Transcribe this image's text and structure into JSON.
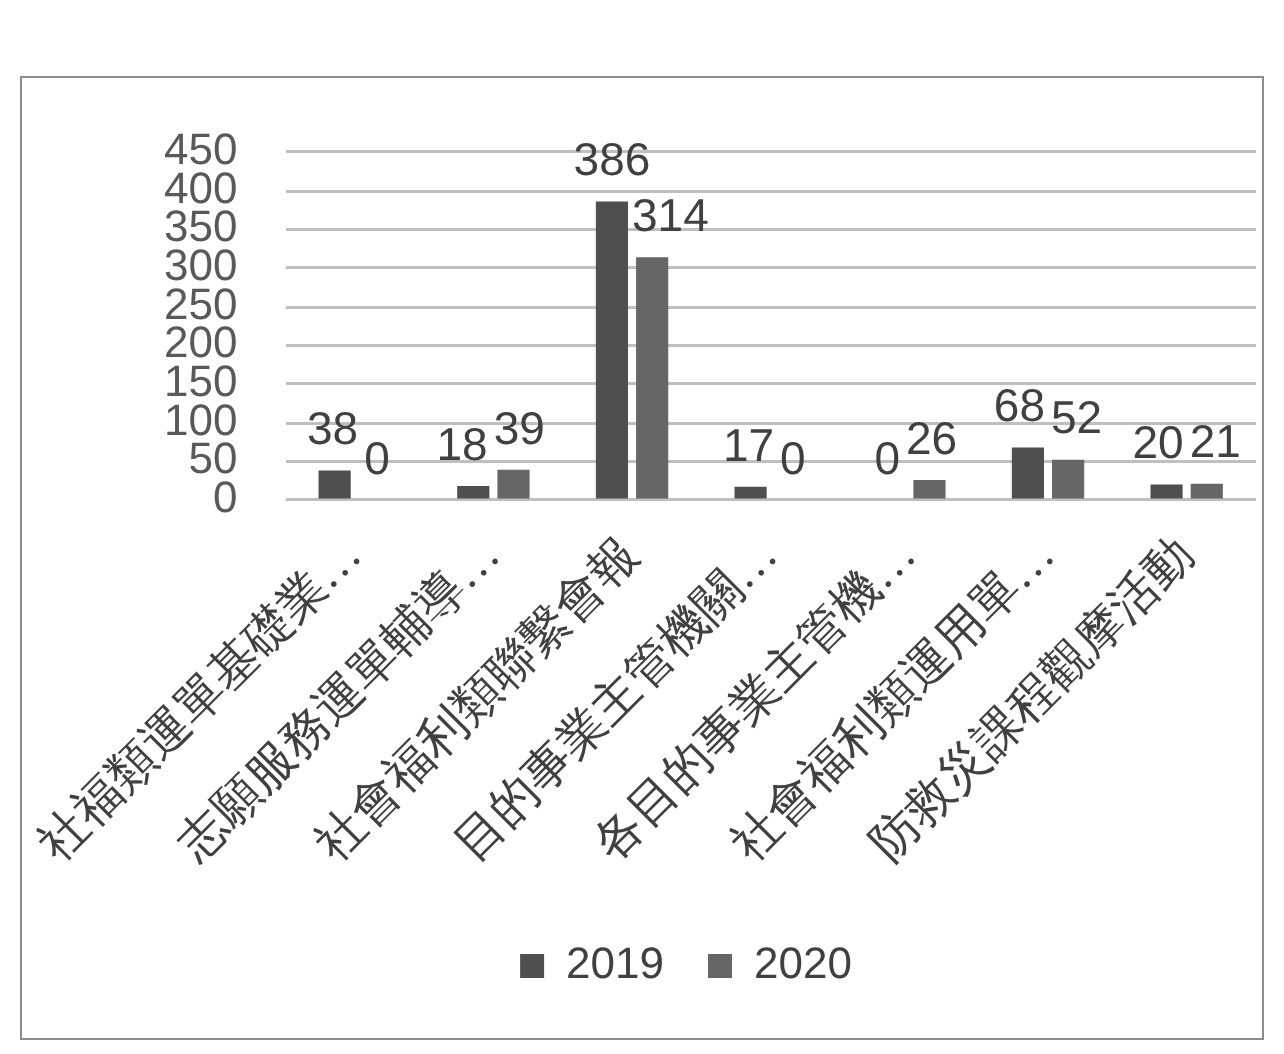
{
  "chart_data": {
    "type": "bar",
    "categories": [
      "社福類運單基礎業…",
      "志願服務運單輔導…",
      "社會福利類聯繫會報",
      "目的事業主管機關…",
      "各目的事業主管機…",
      "社會福利類運用單…",
      "防救災課程觀摩活動"
    ],
    "series": [
      {
        "name": "2019",
        "color": "#4f4f4f",
        "values": [
          38,
          18,
          386,
          17,
          0,
          68,
          20
        ]
      },
      {
        "name": "2020",
        "color": "#666666",
        "values": [
          0,
          39,
          314,
          0,
          26,
          52,
          21
        ]
      }
    ],
    "ylim": [
      0,
      450
    ],
    "yticks": [
      0,
      50,
      100,
      150,
      200,
      250,
      300,
      350,
      400,
      450
    ],
    "grid": "y",
    "legend": "bottom",
    "data_labels": true
  }
}
